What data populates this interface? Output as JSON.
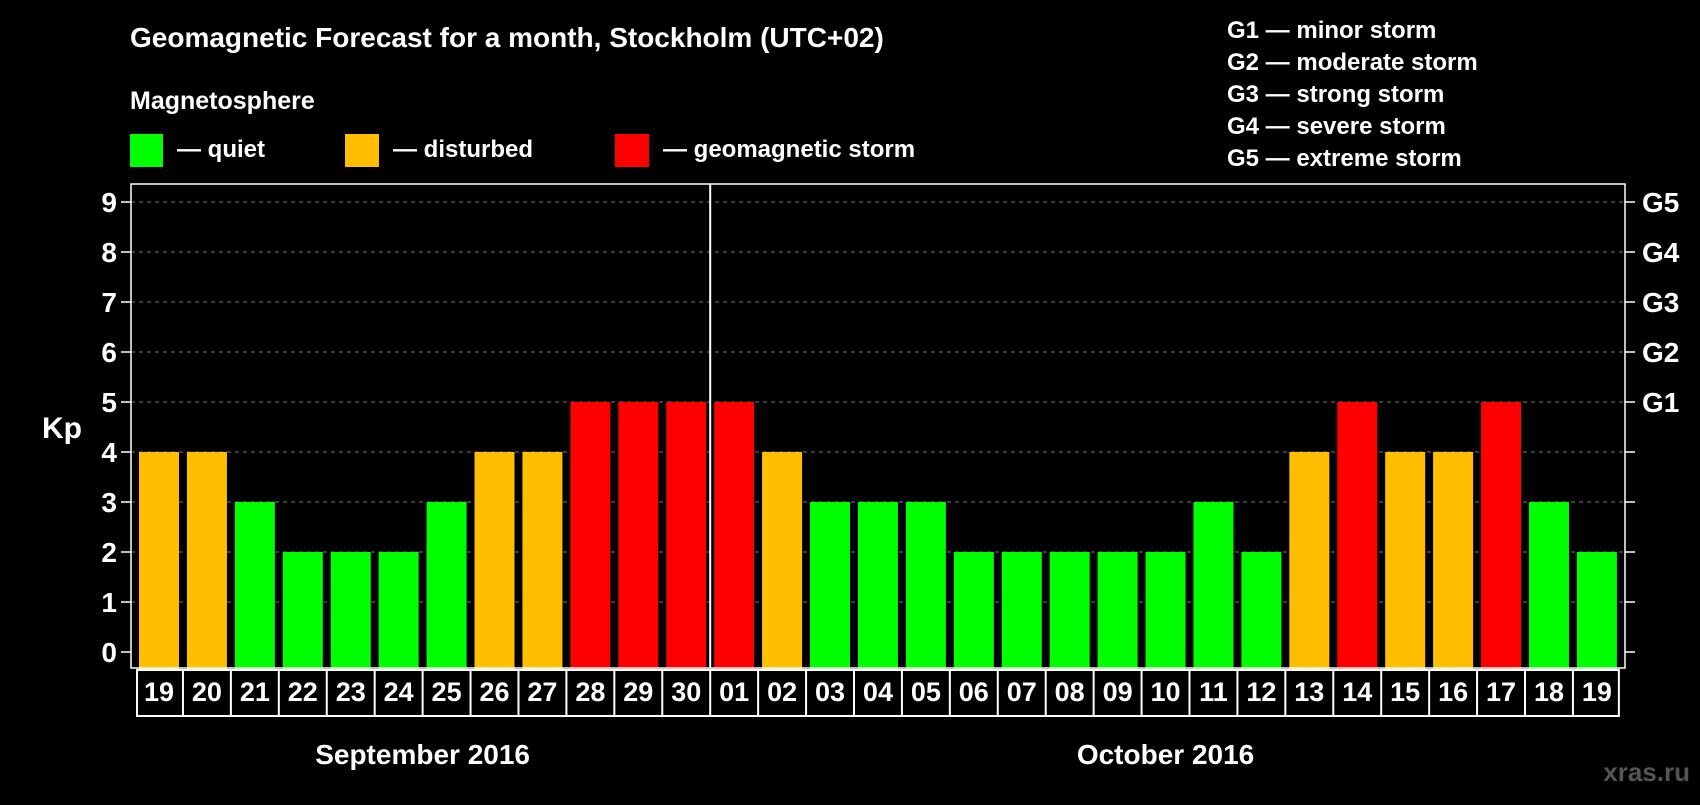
{
  "title": "Geomagnetic Forecast for a month, Stockholm (UTC+02)",
  "legend": {
    "heading": "Magnetosphere",
    "items": [
      {
        "key": "quiet",
        "label": "— quiet",
        "color": "#00ff00"
      },
      {
        "key": "disturbed",
        "label": "— disturbed",
        "color": "#ffbf00"
      },
      {
        "key": "storm",
        "label": "— geomagnetic storm",
        "color": "#ff0000"
      }
    ]
  },
  "storm_scale": [
    "G1 — minor storm",
    "G2 — moderate storm",
    "G3 — strong storm",
    "G4 — severe storm",
    "G5 — extreme storm"
  ],
  "watermark": "xras.ru",
  "chart_data": {
    "type": "bar",
    "ylabel": "Kp",
    "ylim": [
      0,
      9
    ],
    "yticks": [
      "0",
      "1",
      "2",
      "3",
      "4",
      "5",
      "6",
      "7",
      "8",
      "9"
    ],
    "right_axis": [
      {
        "value": 5,
        "label": "G1"
      },
      {
        "value": 6,
        "label": "G2"
      },
      {
        "value": 7,
        "label": "G3"
      },
      {
        "value": 8,
        "label": "G4"
      },
      {
        "value": 9,
        "label": "G5"
      }
    ],
    "grid": "dashed horizontal",
    "categories": [
      "19",
      "20",
      "21",
      "22",
      "23",
      "24",
      "25",
      "26",
      "27",
      "28",
      "29",
      "30",
      "01",
      "02",
      "03",
      "04",
      "05",
      "06",
      "07",
      "08",
      "09",
      "10",
      "11",
      "12",
      "13",
      "14",
      "15",
      "16",
      "17",
      "18",
      "19"
    ],
    "values": [
      4,
      4,
      3,
      2,
      2,
      2,
      3,
      4,
      4,
      5,
      5,
      5,
      5,
      4,
      3,
      3,
      3,
      2,
      2,
      2,
      2,
      2,
      3,
      2,
      4,
      5,
      4,
      4,
      5,
      3,
      2
    ],
    "colors": {
      "quiet": "#00ff00",
      "disturbed": "#ffbf00",
      "storm": "#ff0000"
    },
    "months": [
      {
        "label": "September 2016",
        "first_index": 0,
        "last_index": 11
      },
      {
        "label": "October 2016",
        "first_index": 12,
        "last_index": 30
      }
    ]
  }
}
